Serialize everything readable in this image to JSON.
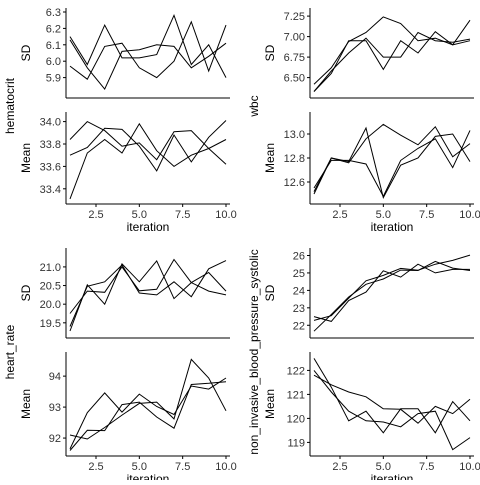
{
  "line_color": "#000000",
  "chart_data": [
    {
      "type": "line",
      "group": "hematocrit",
      "ylabel": "SD",
      "xlabel": "",
      "x": [
        1,
        2,
        3,
        4,
        5,
        6,
        7,
        8,
        9,
        10
      ],
      "xlim": [
        1,
        10
      ],
      "ylim": [
        5.8,
        6.3
      ],
      "yticks": [
        "5.9",
        "6.0",
        "6.1",
        "6.2",
        "6.3"
      ],
      "series": [
        {
          "values": [
            6.15,
            5.98,
            6.22,
            6.02,
            6.02,
            6.04,
            6.28,
            5.98,
            6.1,
            5.9
          ]
        },
        {
          "values": [
            5.97,
            5.89,
            6.09,
            6.11,
            5.96,
            5.9,
            6.0,
            6.24,
            5.94,
            6.22
          ]
        },
        {
          "values": [
            6.13,
            5.96,
            5.83,
            6.06,
            6.07,
            6.1,
            6.09,
            5.96,
            6.03,
            6.11
          ]
        }
      ]
    },
    {
      "type": "line",
      "group": "hematocrit",
      "ylabel": "Mean",
      "xlabel": "iteration",
      "x": [
        1,
        2,
        3,
        4,
        5,
        6,
        7,
        8,
        9,
        10
      ],
      "xlim": [
        1,
        10
      ],
      "ylim": [
        33.3,
        34.05
      ],
      "xticks": [
        "2.5",
        "5.0",
        "7.5",
        "10.0"
      ],
      "yticks": [
        "33.4",
        "33.6",
        "33.8",
        "34.0"
      ],
      "series": [
        {
          "values": [
            33.84,
            34.0,
            33.92,
            33.78,
            33.81,
            33.66,
            33.91,
            33.92,
            33.76,
            33.62
          ]
        },
        {
          "values": [
            33.7,
            33.77,
            33.94,
            33.93,
            33.78,
            33.56,
            33.88,
            33.64,
            33.86,
            34.01
          ]
        },
        {
          "values": [
            33.31,
            33.72,
            33.84,
            33.72,
            33.98,
            33.74,
            33.6,
            33.7,
            33.76,
            33.84
          ]
        }
      ]
    },
    {
      "type": "line",
      "group": "wbc",
      "ylabel": "SD",
      "xlabel": "",
      "x": [
        1,
        2,
        3,
        4,
        5,
        6,
        7,
        8,
        9,
        10
      ],
      "xlim": [
        1,
        10
      ],
      "ylim": [
        6.3,
        7.3
      ],
      "yticks": [
        "6.50",
        "6.75",
        "7.00",
        "7.25"
      ],
      "series": [
        {
          "values": [
            6.42,
            6.62,
            6.94,
            7.05,
            7.24,
            7.16,
            6.95,
            6.98,
            6.9,
            6.95
          ]
        },
        {
          "values": [
            6.33,
            6.55,
            6.95,
            6.95,
            6.6,
            6.95,
            6.8,
            7.06,
            6.9,
            7.2
          ]
        },
        {
          "values": [
            6.33,
            6.58,
            6.8,
            6.98,
            6.75,
            6.75,
            7.05,
            6.95,
            6.93,
            6.97
          ]
        }
      ]
    },
    {
      "type": "line",
      "group": "wbc",
      "ylabel": "Mean",
      "xlabel": "iteration",
      "x": [
        1,
        2,
        3,
        4,
        5,
        6,
        7,
        8,
        9,
        10
      ],
      "xlim": [
        1,
        10
      ],
      "ylim": [
        12.45,
        13.15
      ],
      "xticks": [
        "2.5",
        "5.0",
        "7.5",
        "10.0"
      ],
      "yticks": [
        "12.6",
        "12.8",
        "13.0"
      ],
      "series": [
        {
          "values": [
            12.55,
            12.78,
            12.78,
            12.75,
            12.48,
            12.78,
            12.88,
            12.96,
            12.72,
            13.03
          ]
        },
        {
          "values": [
            12.5,
            12.8,
            12.76,
            12.96,
            13.08,
            12.99,
            12.91,
            13.06,
            12.81,
            12.92
          ]
        },
        {
          "values": [
            12.52,
            12.8,
            12.77,
            13.05,
            12.47,
            12.74,
            12.8,
            12.98,
            13.0,
            12.77
          ]
        }
      ]
    },
    {
      "type": "line",
      "group": "heart_rate",
      "ylabel": "SD",
      "xlabel": "",
      "x": [
        1,
        2,
        3,
        4,
        5,
        6,
        7,
        8,
        9,
        10
      ],
      "xlim": [
        1,
        10
      ],
      "ylim": [
        19.2,
        21.4
      ],
      "yticks": [
        "19.5",
        "20.0",
        "20.5",
        "21.0"
      ],
      "series": [
        {
          "values": [
            19.4,
            20.48,
            20.6,
            21.05,
            20.3,
            20.25,
            20.6,
            20.2,
            20.95,
            21.17
          ]
        },
        {
          "values": [
            19.75,
            20.35,
            20.32,
            21.0,
            20.36,
            20.4,
            21.2,
            20.58,
            20.85,
            20.35
          ]
        },
        {
          "values": [
            19.28,
            20.52,
            20.0,
            21.08,
            20.6,
            21.16,
            20.15,
            20.58,
            20.35,
            20.25
          ]
        }
      ]
    },
    {
      "type": "line",
      "group": "heart_rate",
      "ylabel": "Mean",
      "xlabel": "iteration",
      "x": [
        1,
        2,
        3,
        4,
        5,
        6,
        7,
        8,
        9,
        10
      ],
      "xlim": [
        1,
        10
      ],
      "ylim": [
        91.55,
        94.65
      ],
      "xticks": [
        "2.5",
        "5.0",
        "7.5",
        "10.0"
      ],
      "yticks": [
        "92",
        "93",
        "94"
      ],
      "series": [
        {
          "values": [
            92.1,
            91.97,
            92.34,
            92.74,
            93.12,
            93.16,
            92.62,
            94.54,
            93.94,
            92.88
          ]
        },
        {
          "values": [
            91.6,
            92.25,
            92.24,
            93.08,
            93.16,
            92.68,
            92.32,
            93.73,
            93.77,
            93.82
          ]
        },
        {
          "values": [
            91.65,
            92.82,
            93.46,
            92.84,
            93.42,
            93.02,
            92.76,
            93.68,
            93.58,
            93.94
          ]
        }
      ]
    },
    {
      "type": "line",
      "group": "non_invasive_blood_pressure_systolic",
      "ylabel": "SD",
      "xlabel": "",
      "x": [
        1,
        2,
        3,
        4,
        5,
        6,
        7,
        8,
        9,
        10
      ],
      "xlim": [
        1,
        10
      ],
      "ylim": [
        21.5,
        26.2
      ],
      "yticks": [
        "22",
        "23",
        "24",
        "25",
        "26"
      ],
      "series": [
        {
          "values": [
            22.28,
            22.55,
            23.55,
            24.55,
            24.86,
            25.26,
            25.15,
            25.5,
            25.72,
            26.02
          ]
        },
        {
          "values": [
            21.66,
            22.62,
            23.62,
            24.35,
            24.65,
            25.16,
            25.14,
            25.66,
            25.28,
            25.14
          ]
        },
        {
          "values": [
            22.5,
            22.22,
            23.42,
            23.9,
            25.12,
            24.76,
            25.5,
            25.0,
            25.2,
            25.2
          ]
        }
      ]
    },
    {
      "type": "line",
      "group": "non_invasive_blood_pressure_systolic",
      "ylabel": "Mean",
      "xlabel": "iteration",
      "x": [
        1,
        2,
        3,
        4,
        5,
        6,
        7,
        8,
        9,
        10
      ],
      "xlim": [
        1,
        10
      ],
      "ylim": [
        118.6,
        122.6
      ],
      "xticks": [
        "2.5",
        "5.0",
        "7.5",
        "10.0"
      ],
      "yticks": [
        "119",
        "120",
        "121",
        "122"
      ],
      "series": [
        {
          "values": [
            122.5,
            121.3,
            119.9,
            120.3,
            119.4,
            120.4,
            120.4,
            119.4,
            120.7,
            119.9
          ]
        },
        {
          "values": [
            122.0,
            121.1,
            120.3,
            119.9,
            119.85,
            119.65,
            120.2,
            120.3,
            118.7,
            119.2
          ]
        },
        {
          "values": [
            121.8,
            121.4,
            121.1,
            120.9,
            120.4,
            120.38,
            119.8,
            120.5,
            120.2,
            120.8
          ]
        }
      ]
    }
  ]
}
